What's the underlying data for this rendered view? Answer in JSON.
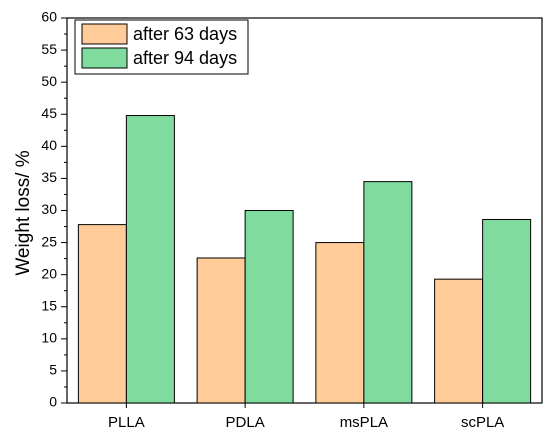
{
  "chart_data": {
    "type": "bar",
    "categories": [
      "PLLA",
      "PDLA",
      "msPLA",
      "scPLA"
    ],
    "series": [
      {
        "name": "after 63 days",
        "values": [
          27.8,
          22.6,
          25.0,
          19.3
        ],
        "color": "#ffcc99"
      },
      {
        "name": "after 94 days",
        "values": [
          44.8,
          30.0,
          34.5,
          28.6
        ],
        "color": "#80dc9e"
      }
    ],
    "xlabel": "",
    "ylabel": "Weight loss/ %",
    "ylim": [
      0,
      60
    ],
    "yticks": [
      0,
      5,
      10,
      15,
      20,
      25,
      30,
      35,
      40,
      45,
      50,
      55,
      60
    ],
    "grid": false,
    "legend_position": "top-left"
  }
}
